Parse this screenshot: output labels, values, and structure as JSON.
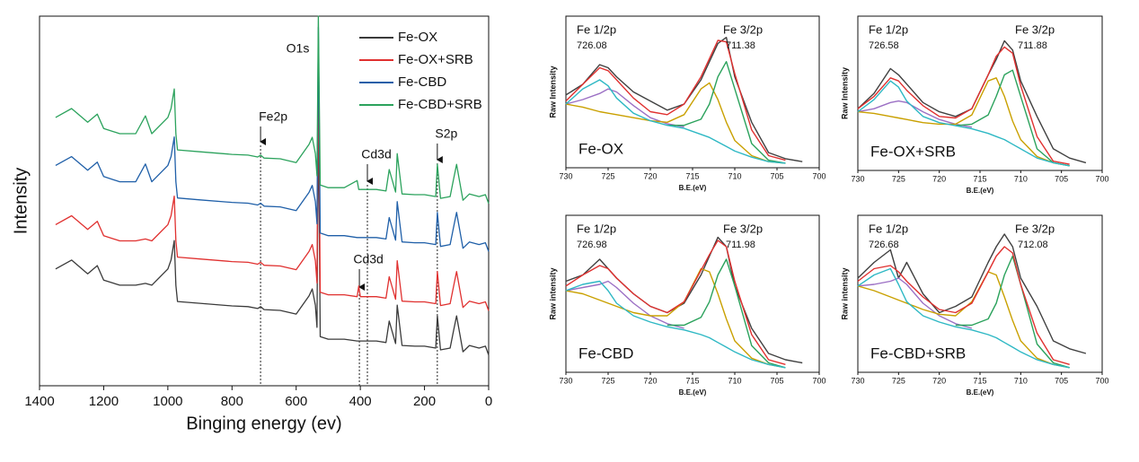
{
  "chart_data": [
    {
      "type": "line",
      "xlabel": "Binging energy (ev)",
      "ylabel": "Intensity",
      "xlim": [
        1400,
        0
      ],
      "xticks": [
        1400,
        1200,
        1000,
        800,
        600,
        400,
        200,
        0
      ],
      "ylim": [
        0,
        100
      ],
      "legend": "upper right",
      "x": [
        1350,
        1300,
        1250,
        1220,
        1200,
        1150,
        1100,
        1070,
        1050,
        1000,
        990,
        980,
        975,
        970,
        900,
        800,
        750,
        720,
        711,
        700,
        650,
        600,
        560,
        550,
        540,
        535,
        531,
        525,
        500,
        450,
        410,
        405,
        400,
        350,
        320,
        310,
        290,
        285,
        270,
        230,
        200,
        165,
        160,
        150,
        120,
        110,
        100,
        80,
        60,
        30,
        10,
        0
      ],
      "series": [
        {
          "name": "Fe-OX",
          "color": "#3a3a3a",
          "values": [
            31.6,
            34.0,
            30.3,
            32.5,
            28.6,
            27.2,
            27.2,
            27.7,
            27.2,
            31.6,
            34.0,
            39.3,
            27.2,
            22.8,
            22.3,
            21.6,
            21.4,
            20.9,
            21.4,
            20.6,
            20.4,
            19.4,
            24.3,
            26.2,
            21.8,
            15.8,
            75.2,
            13.3,
            12.6,
            12.6,
            12.1,
            12.1,
            12.1,
            12.1,
            11.7,
            17.5,
            11.4,
            21.8,
            10.9,
            10.7,
            10.7,
            10.2,
            18.9,
            9.7,
            10.2,
            14.6,
            18.9,
            9.2,
            10.9,
            10.2,
            10.7,
            8.3
          ]
        },
        {
          "name": "Fe-OX+SRB",
          "color": "#e0302f",
          "values": [
            43.6,
            46.0,
            42.3,
            44.5,
            40.6,
            39.2,
            39.2,
            39.7,
            39.2,
            43.6,
            46.0,
            51.3,
            39.2,
            34.8,
            34.3,
            33.6,
            33.4,
            32.9,
            33.4,
            32.6,
            32.4,
            31.4,
            36.3,
            38.2,
            33.8,
            27.8,
            90.0,
            25.3,
            24.6,
            24.6,
            24.1,
            27.0,
            24.1,
            24.1,
            23.7,
            29.5,
            23.4,
            33.8,
            22.9,
            22.7,
            22.7,
            22.2,
            30.9,
            21.7,
            22.2,
            26.6,
            30.9,
            21.2,
            22.9,
            22.2,
            22.7,
            20.3
          ]
        },
        {
          "name": "Fe-CBD",
          "color": "#1f5fa8",
          "values": [
            59.6,
            62.0,
            58.3,
            60.5,
            56.6,
            55.2,
            55.2,
            60.0,
            55.2,
            59.6,
            62.0,
            67.3,
            55.2,
            50.8,
            50.3,
            49.6,
            49.4,
            48.9,
            49.4,
            48.6,
            48.4,
            47.4,
            52.3,
            54.2,
            49.8,
            43.8,
            97.0,
            41.3,
            40.6,
            40.6,
            40.1,
            40.1,
            40.1,
            40.1,
            39.7,
            45.5,
            39.4,
            49.8,
            38.9,
            38.7,
            38.7,
            38.2,
            46.9,
            37.7,
            38.2,
            42.6,
            46.9,
            37.2,
            38.9,
            38.2,
            38.7,
            36.3
          ]
        },
        {
          "name": "Fe-CBD+SRB",
          "color": "#2ba25c",
          "values": [
            72.6,
            75.0,
            71.3,
            73.5,
            69.6,
            68.2,
            68.2,
            73.0,
            68.2,
            72.6,
            75.0,
            80.3,
            68.2,
            63.8,
            63.3,
            62.6,
            62.4,
            61.9,
            62.4,
            61.6,
            61.4,
            60.4,
            65.3,
            67.2,
            62.8,
            56.8,
            100,
            54.3,
            53.6,
            53.6,
            55.5,
            53.1,
            53.1,
            53.1,
            52.7,
            58.5,
            52.4,
            62.8,
            51.9,
            51.7,
            51.7,
            51.2,
            59.9,
            50.7,
            51.2,
            55.6,
            59.9,
            50.2,
            51.9,
            51.2,
            51.7,
            49.3
          ]
        }
      ],
      "annotations": [
        {
          "text": "O1s",
          "x": 531,
          "line": false
        },
        {
          "text": "Fe2p",
          "x": 711,
          "line": true
        },
        {
          "text": "Cd3d",
          "x": 378,
          "line": true
        },
        {
          "text": "S2p",
          "x": 160,
          "line": true
        },
        {
          "text": "Cd3d",
          "x": 403,
          "line": true
        }
      ]
    },
    {
      "type": "line",
      "xlabel": "B.E.(eV)",
      "ylabel": "Raw Intensity",
      "label": "Fe-OX",
      "xlim": [
        730,
        700
      ],
      "xticks": [
        730,
        725,
        720,
        715,
        710,
        705,
        700
      ],
      "ylim": [
        0,
        100
      ],
      "annotations": [
        {
          "text": "Fe 1/2p"
        },
        {
          "text": "726.08"
        },
        {
          "text": "Fe 3/2p"
        },
        {
          "text": "711.38"
        }
      ],
      "x": [
        730,
        728,
        726,
        725,
        724,
        722,
        720,
        718,
        716,
        714,
        713,
        712,
        711,
        710,
        708,
        706,
        704,
        702
      ],
      "series": [
        {
          "color": "#404040",
          "values": [
            48,
            55,
            68,
            66,
            60,
            50,
            44,
            38,
            42,
            58,
            70,
            82,
            86,
            60,
            30,
            10,
            6,
            4
          ]
        },
        {
          "color": "#9b6fc4",
          "values": [
            42,
            45,
            49,
            52,
            50,
            41,
            33,
            29,
            27,
            null,
            null,
            null,
            null,
            null,
            null,
            null,
            null,
            null
          ]
        },
        {
          "color": "#c9a000",
          "values": [
            42,
            40,
            37,
            36,
            35,
            33,
            31,
            30,
            35,
            52,
            56,
            45,
            30,
            18,
            8,
            4,
            3,
            null
          ]
        },
        {
          "color": "#2ba25c",
          "values": [
            null,
            null,
            null,
            null,
            null,
            null,
            null,
            28,
            28,
            32,
            42,
            60,
            70,
            52,
            16,
            5,
            3,
            null
          ]
        },
        {
          "color": "#2eb8c4",
          "values": [
            42,
            52,
            58,
            54,
            46,
            36,
            31,
            28,
            26,
            22,
            20,
            17,
            14,
            11,
            7,
            4,
            3,
            null
          ]
        },
        {
          "color": "#e0302f",
          "values": [
            44,
            55,
            66,
            64,
            58,
            46,
            37,
            35,
            42,
            60,
            72,
            84,
            83,
            62,
            25,
            8,
            5,
            null
          ]
        }
      ]
    },
    {
      "type": "line",
      "xlabel": "B.E.(eV)",
      "ylabel": "Raw Intensity",
      "label": "Fe-OX+SRB",
      "xlim": [
        730,
        700
      ],
      "xticks": [
        730,
        725,
        720,
        715,
        710,
        705,
        700
      ],
      "ylim": [
        0,
        100
      ],
      "annotations": [
        {
          "text": "Fe 1/2p"
        },
        {
          "text": "726.58"
        },
        {
          "text": "Fe 3/2p"
        },
        {
          "text": "711.88"
        }
      ],
      "x": [
        730,
        728,
        726,
        725,
        724,
        722,
        720,
        718,
        716,
        714,
        713,
        712,
        711,
        710,
        708,
        706,
        704,
        702
      ],
      "series": [
        {
          "color": "#404040",
          "values": [
            40,
            50,
            66,
            62,
            56,
            44,
            38,
            35,
            40,
            62,
            72,
            84,
            78,
            58,
            35,
            14,
            8,
            5
          ]
        },
        {
          "color": "#9b6fc4",
          "values": [
            38,
            40,
            44,
            45,
            44,
            38,
            33,
            30,
            28,
            null,
            null,
            null,
            null,
            null,
            null,
            null,
            null,
            null
          ]
        },
        {
          "color": "#c9a000",
          "values": [
            38,
            37,
            35,
            34,
            33,
            31,
            30,
            30,
            36,
            58,
            60,
            48,
            32,
            20,
            9,
            5,
            3,
            null
          ]
        },
        {
          "color": "#2ba25c",
          "values": [
            null,
            null,
            null,
            null,
            null,
            null,
            null,
            29,
            30,
            36,
            48,
            62,
            65,
            48,
            14,
            5,
            3,
            null
          ]
        },
        {
          "color": "#2eb8c4",
          "values": [
            38,
            46,
            58,
            54,
            45,
            35,
            31,
            29,
            27,
            24,
            22,
            20,
            17,
            14,
            8,
            5,
            3,
            null
          ]
        },
        {
          "color": "#e0302f",
          "values": [
            40,
            48,
            60,
            58,
            52,
            42,
            35,
            34,
            40,
            62,
            74,
            80,
            76,
            55,
            22,
            6,
            4,
            null
          ]
        }
      ]
    },
    {
      "type": "line",
      "xlabel": "B.E.(eV)",
      "ylabel": "Raw intensity",
      "label": "Fe-CBD",
      "xlim": [
        730,
        700
      ],
      "xticks": [
        730,
        725,
        720,
        715,
        710,
        705,
        700
      ],
      "ylim": [
        0,
        100
      ],
      "annotations": [
        {
          "text": "Fe 1/2p"
        },
        {
          "text": "726.98"
        },
        {
          "text": "Fe 3/2p"
        },
        {
          "text": "711.98"
        }
      ],
      "x": [
        730,
        728,
        726,
        725,
        724,
        722,
        720,
        718,
        716,
        714,
        713,
        712,
        711,
        710,
        708,
        706,
        704,
        702
      ],
      "series": [
        {
          "color": "#404040",
          "values": [
            58,
            62,
            72,
            66,
            60,
            50,
            42,
            38,
            44,
            62,
            74,
            86,
            80,
            55,
            28,
            12,
            8,
            6
          ]
        },
        {
          "color": "#9b6fc4",
          "values": [
            52,
            54,
            56,
            58,
            54,
            44,
            36,
            31,
            28,
            null,
            null,
            null,
            null,
            null,
            null,
            null,
            null,
            null
          ]
        },
        {
          "color": "#c9a000",
          "values": [
            52,
            50,
            46,
            44,
            42,
            38,
            36,
            36,
            45,
            66,
            64,
            50,
            34,
            20,
            9,
            5,
            3,
            null
          ]
        },
        {
          "color": "#2ba25c",
          "values": [
            null,
            null,
            null,
            null,
            null,
            null,
            null,
            30,
            30,
            35,
            45,
            62,
            72,
            55,
            17,
            6,
            3,
            null
          ]
        },
        {
          "color": "#2eb8c4",
          "values": [
            52,
            56,
            58,
            52,
            44,
            36,
            32,
            29,
            27,
            24,
            22,
            19,
            16,
            13,
            8,
            5,
            3,
            null
          ]
        },
        {
          "color": "#e0302f",
          "values": [
            55,
            62,
            68,
            66,
            60,
            50,
            42,
            38,
            45,
            65,
            75,
            84,
            80,
            58,
            24,
            8,
            5,
            null
          ]
        }
      ]
    },
    {
      "type": "line",
      "xlabel": "B.E.(eV)",
      "ylabel": "Raw intensity",
      "label": "Fe-CBD+SRB",
      "xlim": [
        730,
        700
      ],
      "xticks": [
        730,
        725,
        720,
        715,
        710,
        705,
        700
      ],
      "ylim": [
        0,
        100
      ],
      "annotations": [
        {
          "text": "Fe 1/2p"
        },
        {
          "text": "726.68"
        },
        {
          "text": "Fe 3/2p"
        },
        {
          "text": "712.08"
        }
      ],
      "x": [
        730,
        728,
        726,
        725,
        724,
        722,
        720,
        718,
        716,
        714,
        713,
        712,
        711,
        710,
        708,
        706,
        704,
        702
      ],
      "series": [
        {
          "color": "#404040",
          "values": [
            60,
            70,
            78,
            60,
            70,
            50,
            38,
            42,
            48,
            70,
            80,
            88,
            80,
            60,
            42,
            20,
            15,
            12
          ]
        },
        {
          "color": "#9b6fc4",
          "values": [
            55,
            56,
            58,
            60,
            56,
            44,
            36,
            31,
            28,
            null,
            null,
            null,
            null,
            null,
            null,
            null,
            null,
            null
          ]
        },
        {
          "color": "#c9a000",
          "values": [
            55,
            52,
            48,
            46,
            44,
            40,
            37,
            36,
            45,
            64,
            62,
            48,
            33,
            20,
            9,
            5,
            3,
            null
          ]
        },
        {
          "color": "#2ba25c",
          "values": [
            null,
            null,
            null,
            null,
            null,
            null,
            null,
            30,
            30,
            34,
            44,
            62,
            74,
            56,
            18,
            6,
            3,
            null
          ]
        },
        {
          "color": "#2eb8c4",
          "values": [
            55,
            62,
            66,
            56,
            45,
            36,
            32,
            29,
            27,
            24,
            22,
            19,
            16,
            13,
            8,
            5,
            3,
            null
          ]
        },
        {
          "color": "#e0302f",
          "values": [
            58,
            66,
            68,
            64,
            58,
            48,
            40,
            38,
            44,
            64,
            74,
            80,
            76,
            56,
            25,
            8,
            5,
            null
          ]
        }
      ]
    }
  ]
}
